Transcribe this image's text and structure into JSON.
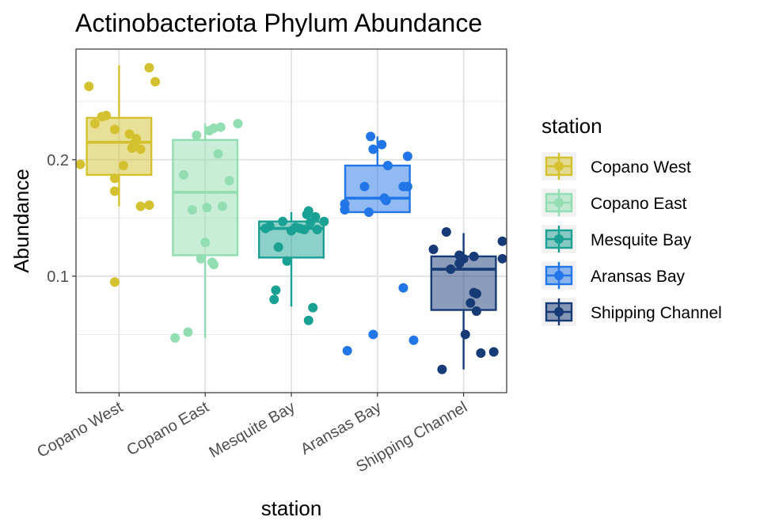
{
  "chart_data": {
    "type": "boxplot",
    "title": "Actinobacteriota Phylum Abundance",
    "xlabel": "station",
    "ylabel": "Abundance",
    "ylim": [
      0.0,
      0.295
    ],
    "yticks": [
      0.1,
      0.2
    ],
    "ytick_labels": [
      "0.1",
      "0.2"
    ],
    "grid": true,
    "legend": {
      "title": "station",
      "position": "right"
    },
    "categories": [
      "Copano West",
      "Copano East",
      "Mesquite Bay",
      "Aransas Bay",
      "Shipping Channel"
    ],
    "series": [
      {
        "name": "Copano West",
        "color": "#D4C12F",
        "box": {
          "whisker_low": 0.16,
          "q1": 0.187,
          "median": 0.215,
          "q3": 0.236,
          "whisker_high": 0.281
        },
        "points": [
          [
            -0.35,
            0.263
          ],
          [
            -0.28,
            0.231
          ],
          [
            -0.2,
            0.237
          ],
          [
            -0.15,
            0.238
          ],
          [
            -0.05,
            0.226
          ],
          [
            -0.45,
            0.196
          ],
          [
            -0.05,
            0.184
          ],
          [
            -0.05,
            0.173
          ],
          [
            -0.05,
            0.095
          ],
          [
            0.05,
            0.195
          ],
          [
            0.12,
            0.222
          ],
          [
            0.2,
            0.218
          ],
          [
            0.15,
            0.21
          ],
          [
            0.25,
            0.209
          ],
          [
            0.18,
            0.214
          ],
          [
            0.25,
            0.16
          ],
          [
            0.35,
            0.161
          ],
          [
            0.35,
            0.279
          ],
          [
            0.42,
            0.267
          ]
        ]
      },
      {
        "name": "Copano East",
        "color": "#92DDB1",
        "box": {
          "whisker_low": 0.047,
          "q1": 0.118,
          "median": 0.172,
          "q3": 0.217,
          "whisker_high": 0.231
        },
        "points": [
          [
            -0.35,
            0.047
          ],
          [
            -0.2,
            0.052
          ],
          [
            -0.25,
            0.187
          ],
          [
            -0.15,
            0.157
          ],
          [
            -0.1,
            0.221
          ],
          [
            -0.05,
            0.115
          ],
          [
            0.0,
            0.129
          ],
          [
            0.02,
            0.159
          ],
          [
            0.05,
            0.225
          ],
          [
            0.08,
            0.112
          ],
          [
            0.1,
            0.11
          ],
          [
            0.15,
            0.205
          ],
          [
            0.2,
            0.16
          ],
          [
            0.28,
            0.182
          ],
          [
            0.18,
            0.228
          ],
          [
            0.38,
            0.231
          ],
          [
            0.1,
            0.227
          ]
        ]
      },
      {
        "name": "Mesquite Bay",
        "color": "#1BA094",
        "box": {
          "whisker_low": 0.074,
          "q1": 0.116,
          "median": 0.141,
          "q3": 0.147,
          "whisker_high": 0.155
        },
        "points": [
          [
            -0.3,
            0.141
          ],
          [
            -0.25,
            0.143
          ],
          [
            -0.2,
            0.08
          ],
          [
            -0.18,
            0.088
          ],
          [
            -0.15,
            0.125
          ],
          [
            -0.1,
            0.147
          ],
          [
            -0.05,
            0.113
          ],
          [
            0.0,
            0.139
          ],
          [
            0.05,
            0.142
          ],
          [
            0.1,
            0.141
          ],
          [
            0.15,
            0.14
          ],
          [
            0.2,
            0.062
          ],
          [
            0.25,
            0.073
          ],
          [
            0.18,
            0.153
          ],
          [
            0.2,
            0.156
          ],
          [
            0.28,
            0.151
          ],
          [
            0.3,
            0.14
          ],
          [
            0.38,
            0.147
          ],
          [
            0.22,
            0.146
          ]
        ]
      },
      {
        "name": "Aransas Bay",
        "color": "#2376E8",
        "box": {
          "whisker_low": 0.155,
          "q1": 0.155,
          "median": 0.167,
          "q3": 0.195,
          "whisker_high": 0.22
        },
        "points": [
          [
            -0.35,
            0.036
          ],
          [
            -0.38,
            0.162
          ],
          [
            -0.38,
            0.157
          ],
          [
            -0.15,
            0.177
          ],
          [
            -0.1,
            0.155
          ],
          [
            -0.05,
            0.05
          ],
          [
            -0.08,
            0.22
          ],
          [
            -0.05,
            0.209
          ],
          [
            0.05,
            0.213
          ],
          [
            0.08,
            0.167
          ],
          [
            0.1,
            0.165
          ],
          [
            0.12,
            0.195
          ],
          [
            0.3,
            0.177
          ],
          [
            0.3,
            0.09
          ],
          [
            0.35,
            0.177
          ],
          [
            0.35,
            0.203
          ],
          [
            0.42,
            0.045
          ]
        ]
      },
      {
        "name": "Shipping Channel",
        "color": "#173B76",
        "box": {
          "whisker_low": 0.02,
          "q1": 0.071,
          "median": 0.106,
          "q3": 0.117,
          "whisker_high": 0.137
        },
        "points": [
          [
            -0.35,
            0.123
          ],
          [
            -0.25,
            0.02
          ],
          [
            -0.2,
            0.138
          ],
          [
            -0.15,
            0.106
          ],
          [
            -0.05,
            0.118
          ],
          [
            -0.05,
            0.111
          ],
          [
            0.0,
            0.115
          ],
          [
            0.02,
            0.05
          ],
          [
            0.08,
            0.077
          ],
          [
            0.12,
            0.086
          ],
          [
            0.15,
            0.085
          ],
          [
            0.12,
            0.117
          ],
          [
            0.15,
            0.07
          ],
          [
            0.2,
            0.034
          ],
          [
            0.35,
            0.035
          ],
          [
            0.45,
            0.115
          ],
          [
            0.45,
            0.13
          ]
        ]
      }
    ]
  }
}
